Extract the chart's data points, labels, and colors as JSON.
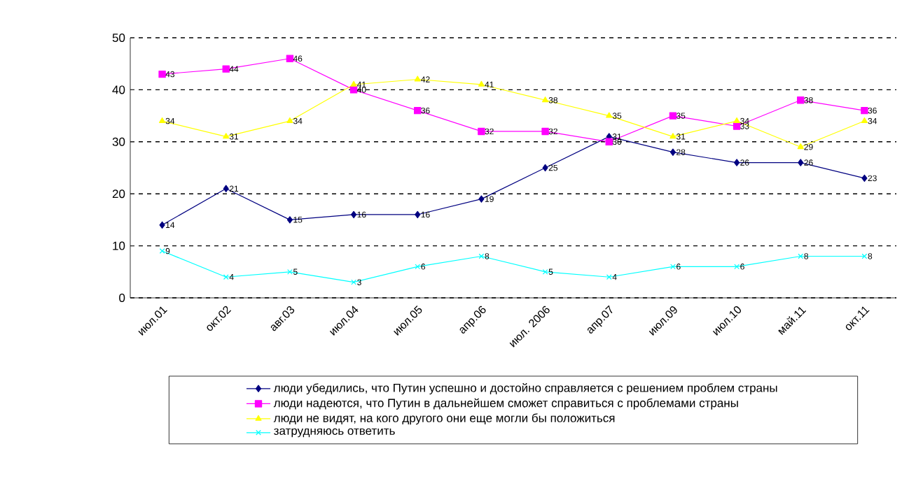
{
  "chart_data": {
    "type": "line",
    "categories": [
      "июл.01",
      "окт.02",
      "авг.03",
      "июл.04",
      "июл.05",
      "апр.06",
      "июл. 2006",
      "апр.07",
      "июл.09",
      "июл.10",
      "май.11",
      "окт.11"
    ],
    "series": [
      {
        "name": "люди убедились, что Путин успешно и достойно справляется с решением проблем страны",
        "color": "#000080",
        "marker": "diamond",
        "values": [
          14,
          21,
          15,
          16,
          16,
          19,
          25,
          31,
          28,
          26,
          26,
          23
        ]
      },
      {
        "name": "люди надеются, что Путин в дальнейшем сможет справиться с проблемами страны",
        "color": "#ff00ff",
        "marker": "square",
        "values": [
          43,
          44,
          46,
          40,
          36,
          32,
          32,
          30,
          35,
          33,
          38,
          36
        ]
      },
      {
        "name": "люди не видят, на кого другого они еще могли бы положиться",
        "color": "#ffff00",
        "marker": "triangle",
        "values": [
          34,
          31,
          34,
          41,
          42,
          41,
          38,
          35,
          31,
          34,
          29,
          34
        ]
      },
      {
        "name": "затрудняюсь ответить",
        "color": "#00ffff",
        "marker": "cross",
        "values": [
          9,
          4,
          5,
          3,
          6,
          8,
          5,
          4,
          6,
          6,
          8,
          8
        ]
      }
    ],
    "ylim": [
      0,
      50
    ],
    "yticks": [
      0,
      10,
      20,
      30,
      40,
      50
    ],
    "grid": "y",
    "legend": "bottom",
    "data_labels": true
  }
}
